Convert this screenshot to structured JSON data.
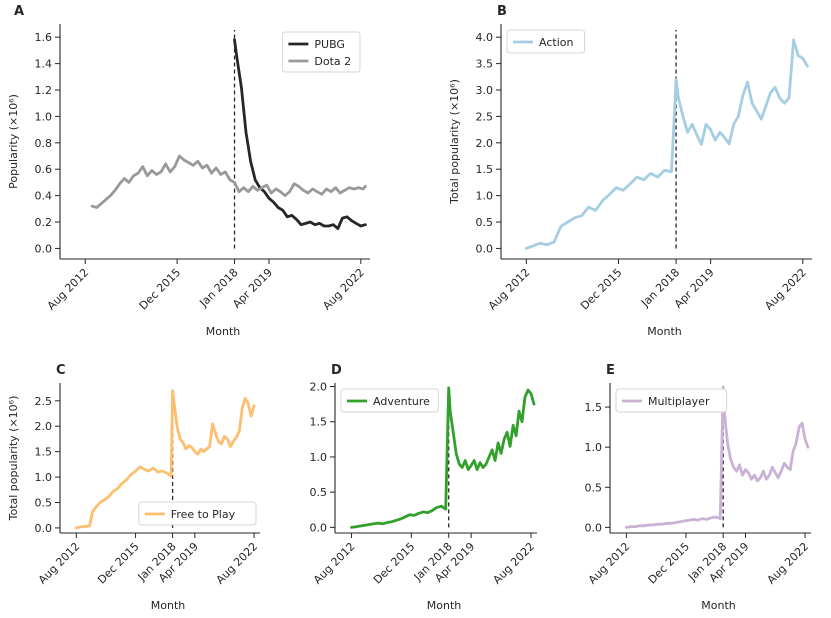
{
  "chart_data": [
    {
      "panel": "A",
      "type": "line",
      "xlabel": "Month",
      "ylabel": "Popularity (×10⁶)",
      "ylim": [
        -0.08,
        1.7
      ],
      "yticks": [
        0.0,
        0.2,
        0.4,
        0.6,
        0.8,
        1.0,
        1.2,
        1.4,
        1.6
      ],
      "xticks": [
        "Aug 2012",
        "Dec 2015",
        "Jan 2018",
        "Apr 2019",
        "Aug 2022"
      ],
      "xlim": [
        "2011-09",
        "2022-12"
      ],
      "vline": "2018-01",
      "legend_position": "top-right",
      "series": [
        {
          "name": "PUBG",
          "color": "#262626",
          "x": [
            "2018-01",
            "2018-02",
            "2018-04",
            "2018-06",
            "2018-08",
            "2018-10",
            "2018-12",
            "2019-02",
            "2019-04",
            "2019-06",
            "2019-08",
            "2019-10",
            "2019-12",
            "2020-02",
            "2020-04",
            "2020-06",
            "2020-08",
            "2020-10",
            "2020-12",
            "2021-02",
            "2021-04",
            "2021-06",
            "2021-08",
            "2021-10",
            "2021-12",
            "2022-02",
            "2022-04",
            "2022-06",
            "2022-08",
            "2022-10"
          ],
          "values": [
            1.58,
            1.45,
            1.22,
            0.88,
            0.66,
            0.52,
            0.46,
            0.43,
            0.38,
            0.35,
            0.31,
            0.29,
            0.24,
            0.25,
            0.22,
            0.18,
            0.19,
            0.2,
            0.18,
            0.19,
            0.17,
            0.17,
            0.18,
            0.15,
            0.23,
            0.24,
            0.21,
            0.19,
            0.17,
            0.18
          ]
        },
        {
          "name": "Dota 2",
          "color": "#999999",
          "x": [
            "2012-11",
            "2013-01",
            "2013-03",
            "2013-05",
            "2013-07",
            "2013-09",
            "2013-11",
            "2014-01",
            "2014-03",
            "2014-05",
            "2014-07",
            "2014-09",
            "2014-11",
            "2015-01",
            "2015-03",
            "2015-05",
            "2015-07",
            "2015-09",
            "2015-11",
            "2016-01",
            "2016-03",
            "2016-05",
            "2016-07",
            "2016-09",
            "2016-11",
            "2017-01",
            "2017-03",
            "2017-05",
            "2017-07",
            "2017-09",
            "2017-11",
            "2018-01",
            "2018-03",
            "2018-05",
            "2018-07",
            "2018-09",
            "2018-11",
            "2019-01",
            "2019-03",
            "2019-05",
            "2019-07",
            "2019-09",
            "2019-11",
            "2020-01",
            "2020-03",
            "2020-05",
            "2020-07",
            "2020-09",
            "2020-11",
            "2021-01",
            "2021-03",
            "2021-05",
            "2021-07",
            "2021-09",
            "2021-11",
            "2022-01",
            "2022-03",
            "2022-05",
            "2022-07",
            "2022-09",
            "2022-10"
          ],
          "values": [
            0.32,
            0.31,
            0.34,
            0.37,
            0.4,
            0.44,
            0.49,
            0.53,
            0.5,
            0.55,
            0.57,
            0.62,
            0.55,
            0.59,
            0.56,
            0.58,
            0.64,
            0.58,
            0.62,
            0.7,
            0.67,
            0.65,
            0.63,
            0.66,
            0.61,
            0.63,
            0.57,
            0.61,
            0.56,
            0.58,
            0.52,
            0.5,
            0.43,
            0.46,
            0.43,
            0.47,
            0.44,
            0.46,
            0.48,
            0.42,
            0.45,
            0.43,
            0.4,
            0.43,
            0.49,
            0.47,
            0.44,
            0.42,
            0.45,
            0.43,
            0.41,
            0.45,
            0.43,
            0.46,
            0.42,
            0.44,
            0.46,
            0.45,
            0.46,
            0.45,
            0.47
          ]
        }
      ]
    },
    {
      "panel": "B",
      "type": "line",
      "xlabel": "Month",
      "ylabel": "Total popularity (×10⁶)",
      "ylim": [
        -0.2,
        4.25
      ],
      "yticks": [
        0.0,
        0.5,
        1.0,
        1.5,
        2.0,
        2.5,
        3.0,
        3.5,
        4.0
      ],
      "xticks": [
        "Aug 2012",
        "Dec 2015",
        "Jan 2018",
        "Apr 2019",
        "Aug 2022"
      ],
      "xlim": [
        "2011-09",
        "2022-12"
      ],
      "vline": "2018-01",
      "legend_position": "top-left",
      "series": [
        {
          "name": "Action",
          "color": "#a6cee3",
          "x": [
            "2012-08",
            "2012-11",
            "2013-02",
            "2013-05",
            "2013-08",
            "2013-11",
            "2014-02",
            "2014-05",
            "2014-08",
            "2014-11",
            "2015-02",
            "2015-05",
            "2015-08",
            "2015-11",
            "2016-02",
            "2016-05",
            "2016-08",
            "2016-11",
            "2017-02",
            "2017-05",
            "2017-08",
            "2017-11",
            "2018-01",
            "2018-02",
            "2018-04",
            "2018-06",
            "2018-08",
            "2018-10",
            "2018-12",
            "2019-02",
            "2019-04",
            "2019-06",
            "2019-08",
            "2019-10",
            "2019-12",
            "2020-02",
            "2020-04",
            "2020-06",
            "2020-08",
            "2020-10",
            "2020-12",
            "2021-02",
            "2021-04",
            "2021-06",
            "2021-08",
            "2021-10",
            "2021-12",
            "2022-02",
            "2022-04",
            "2022-06",
            "2022-08",
            "2022-10"
          ],
          "values": [
            0.0,
            0.05,
            0.1,
            0.07,
            0.12,
            0.42,
            0.5,
            0.58,
            0.62,
            0.78,
            0.72,
            0.9,
            1.02,
            1.15,
            1.1,
            1.22,
            1.35,
            1.3,
            1.42,
            1.35,
            1.48,
            1.45,
            3.2,
            2.85,
            2.5,
            2.2,
            2.35,
            2.15,
            1.97,
            2.35,
            2.25,
            2.05,
            2.2,
            2.1,
            1.98,
            2.35,
            2.5,
            2.9,
            3.15,
            2.75,
            2.6,
            2.45,
            2.7,
            2.95,
            3.05,
            2.85,
            2.75,
            2.85,
            3.95,
            3.65,
            3.6,
            3.45
          ]
        }
      ]
    },
    {
      "panel": "C",
      "type": "line",
      "xlabel": "Month",
      "ylabel": "Total popularity (×10⁶)",
      "ylim": [
        -0.1,
        2.85
      ],
      "yticks": [
        0.0,
        0.5,
        1.0,
        1.5,
        2.0,
        2.5
      ],
      "xticks": [
        "Aug 2012",
        "Dec 2015",
        "Jan 2018",
        "Apr 2019",
        "Aug 2022"
      ],
      "xlim": [
        "2011-09",
        "2022-12"
      ],
      "vline": "2018-01",
      "legend_position": "bottom-right",
      "series": [
        {
          "name": "Free to Play",
          "color": "#fdbf6f",
          "x": [
            "2012-08",
            "2012-11",
            "2013-02",
            "2013-05",
            "2013-07",
            "2013-09",
            "2013-12",
            "2014-03",
            "2014-06",
            "2014-09",
            "2014-12",
            "2015-03",
            "2015-06",
            "2015-09",
            "2015-12",
            "2016-03",
            "2016-06",
            "2016-09",
            "2016-12",
            "2017-03",
            "2017-06",
            "2017-09",
            "2017-12",
            "2018-01",
            "2018-02",
            "2018-04",
            "2018-06",
            "2018-08",
            "2018-10",
            "2018-12",
            "2019-02",
            "2019-04",
            "2019-06",
            "2019-08",
            "2019-10",
            "2019-12",
            "2020-02",
            "2020-04",
            "2020-06",
            "2020-08",
            "2020-10",
            "2020-12",
            "2021-02",
            "2021-04",
            "2021-06",
            "2021-08",
            "2021-10",
            "2021-12",
            "2022-02",
            "2022-04",
            "2022-06",
            "2022-08"
          ],
          "values": [
            0.0,
            0.02,
            0.03,
            0.04,
            0.32,
            0.4,
            0.5,
            0.55,
            0.62,
            0.72,
            0.78,
            0.88,
            0.95,
            1.05,
            1.12,
            1.2,
            1.15,
            1.12,
            1.18,
            1.1,
            1.12,
            1.08,
            1.02,
            2.7,
            2.45,
            2.0,
            1.75,
            1.68,
            1.55,
            1.62,
            1.58,
            1.5,
            1.45,
            1.55,
            1.5,
            1.55,
            1.6,
            2.05,
            1.85,
            1.7,
            1.65,
            1.8,
            1.75,
            1.6,
            1.7,
            1.78,
            1.9,
            2.35,
            2.55,
            2.45,
            2.2,
            2.4
          ]
        }
      ]
    },
    {
      "panel": "D",
      "type": "line",
      "xlabel": "Month",
      "ylabel": "",
      "ylim": [
        -0.08,
        2.05
      ],
      "yticks": [
        0.0,
        0.5,
        1.0,
        1.5,
        2.0
      ],
      "xticks": [
        "Aug 2012",
        "Dec 2015",
        "Jan 2018",
        "Apr 2019",
        "Aug 2022"
      ],
      "xlim": [
        "2011-09",
        "2022-12"
      ],
      "vline": "2018-01",
      "legend_position": "top-left",
      "series": [
        {
          "name": "Adventure",
          "color": "#33a02c",
          "x": [
            "2012-08",
            "2012-11",
            "2013-02",
            "2013-05",
            "2013-08",
            "2013-11",
            "2014-02",
            "2014-05",
            "2014-08",
            "2014-11",
            "2015-02",
            "2015-05",
            "2015-08",
            "2015-11",
            "2016-02",
            "2016-05",
            "2016-08",
            "2016-11",
            "2017-02",
            "2017-05",
            "2017-08",
            "2017-11",
            "2018-01",
            "2018-02",
            "2018-04",
            "2018-06",
            "2018-08",
            "2018-10",
            "2018-12",
            "2019-02",
            "2019-04",
            "2019-06",
            "2019-08",
            "2019-10",
            "2019-12",
            "2020-02",
            "2020-04",
            "2020-06",
            "2020-08",
            "2020-10",
            "2020-12",
            "2021-02",
            "2021-04",
            "2021-06",
            "2021-08",
            "2021-10",
            "2021-12",
            "2022-02",
            "2022-04",
            "2022-06",
            "2022-08",
            "2022-10"
          ],
          "values": [
            0.0,
            0.01,
            0.02,
            0.03,
            0.04,
            0.05,
            0.06,
            0.05,
            0.07,
            0.08,
            0.1,
            0.12,
            0.15,
            0.18,
            0.17,
            0.2,
            0.22,
            0.21,
            0.24,
            0.28,
            0.3,
            0.26,
            1.98,
            1.65,
            1.35,
            1.05,
            0.9,
            0.85,
            0.95,
            0.82,
            0.88,
            0.95,
            0.82,
            0.92,
            0.85,
            0.9,
            1.0,
            1.1,
            0.95,
            1.2,
            1.05,
            1.25,
            1.35,
            1.15,
            1.45,
            1.3,
            1.65,
            1.5,
            1.85,
            1.95,
            1.9,
            1.75
          ]
        }
      ]
    },
    {
      "panel": "E",
      "type": "line",
      "xlabel": "Month",
      "ylabel": "",
      "ylim": [
        -0.07,
        1.8
      ],
      "yticks": [
        0.0,
        0.5,
        1.0,
        1.5
      ],
      "xticks": [
        "Aug 2012",
        "Dec 2015",
        "Jan 2018",
        "Apr 2019",
        "Aug 2022"
      ],
      "xlim": [
        "2011-09",
        "2022-12"
      ],
      "vline": "2018-01",
      "legend_position": "top-left",
      "series": [
        {
          "name": "Multiplayer",
          "color": "#cab2d6",
          "x": [
            "2012-08",
            "2012-11",
            "2013-02",
            "2013-05",
            "2013-08",
            "2013-11",
            "2014-02",
            "2014-05",
            "2014-08",
            "2014-11",
            "2015-02",
            "2015-05",
            "2015-08",
            "2015-11",
            "2016-02",
            "2016-05",
            "2016-08",
            "2016-11",
            "2017-02",
            "2017-05",
            "2017-08",
            "2017-11",
            "2018-01",
            "2018-02",
            "2018-04",
            "2018-06",
            "2018-08",
            "2018-10",
            "2018-12",
            "2019-02",
            "2019-04",
            "2019-06",
            "2019-08",
            "2019-10",
            "2019-12",
            "2020-02",
            "2020-04",
            "2020-06",
            "2020-08",
            "2020-10",
            "2020-12",
            "2021-02",
            "2021-04",
            "2021-06",
            "2021-08",
            "2021-10",
            "2021-12",
            "2022-02",
            "2022-04",
            "2022-06",
            "2022-08",
            "2022-10"
          ],
          "values": [
            0.0,
            0.01,
            0.01,
            0.02,
            0.02,
            0.03,
            0.03,
            0.04,
            0.04,
            0.05,
            0.05,
            0.06,
            0.07,
            0.08,
            0.09,
            0.1,
            0.09,
            0.11,
            0.1,
            0.12,
            0.13,
            0.11,
            1.75,
            1.4,
            1.05,
            0.85,
            0.75,
            0.7,
            0.78,
            0.65,
            0.72,
            0.68,
            0.6,
            0.65,
            0.58,
            0.62,
            0.7,
            0.6,
            0.65,
            0.75,
            0.68,
            0.62,
            0.7,
            0.8,
            0.75,
            0.72,
            0.95,
            1.05,
            1.25,
            1.3,
            1.1,
            1.0
          ]
        }
      ]
    }
  ]
}
